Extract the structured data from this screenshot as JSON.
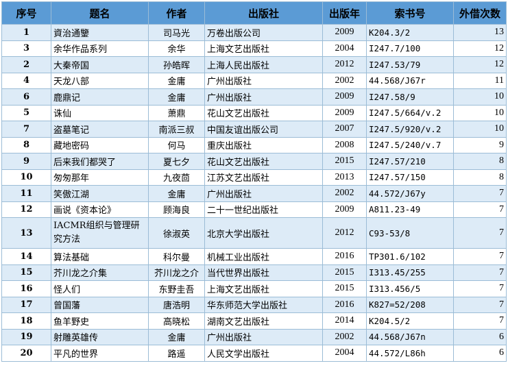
{
  "table": {
    "headers": [
      "序号",
      "题名",
      "作者",
      "出版社",
      "出版年",
      "索书号",
      "外借次数"
    ],
    "rows": [
      {
        "no": "1",
        "title": "資治通鑒",
        "author": "司马光",
        "publisher": "万卷出版公司",
        "year": "2009",
        "call": "K204.3/2",
        "loans": "13"
      },
      {
        "no": "3",
        "title": "余华作品系列",
        "author": "余华",
        "publisher": "上海文艺出版社",
        "year": "2004",
        "call": "I247.7/100",
        "loans": "12"
      },
      {
        "no": "2",
        "title": "大秦帝国",
        "author": "孙皓晖",
        "publisher": "上海人民出版社",
        "year": "2012",
        "call": "I247.53/79",
        "loans": "12"
      },
      {
        "no": "4",
        "title": "天龙八部",
        "author": "金庸",
        "publisher": "广州出版社",
        "year": "2002",
        "call": "44.568/J67r",
        "loans": "11"
      },
      {
        "no": "6",
        "title": "鹿鼎记",
        "author": "金庸",
        "publisher": "广州出版社",
        "year": "2009",
        "call": "I247.58/9",
        "loans": "10"
      },
      {
        "no": "5",
        "title": "诛仙",
        "author": "萧鼎",
        "publisher": "花山文艺出版社",
        "year": "2009",
        "call": "I247.5/664/v.2",
        "loans": "10"
      },
      {
        "no": "7",
        "title": "盗墓笔记",
        "author": "南派三叔",
        "publisher": "中国友谊出版公司",
        "year": "2007",
        "call": "I247.5/920/v.2",
        "loans": "10"
      },
      {
        "no": "8",
        "title": "藏地密码",
        "author": "何马",
        "publisher": "重庆出版社",
        "year": "2008",
        "call": "I247.5/240/v.7",
        "loans": "9"
      },
      {
        "no": "9",
        "title": "后来我们都哭了",
        "author": "夏七夕",
        "publisher": "花山文艺出版社",
        "year": "2015",
        "call": "I247.57/210",
        "loans": "8"
      },
      {
        "no": "10",
        "title": "匆匆那年",
        "author": "九夜茴",
        "publisher": "江苏文艺出版社",
        "year": "2013",
        "call": "I247.57/150",
        "loans": "8"
      },
      {
        "no": "11",
        "title": "笑傲江湖",
        "author": "金庸",
        "publisher": "广州出版社",
        "year": "2002",
        "call": "44.572/J67y",
        "loans": "7"
      },
      {
        "no": "12",
        "title": "画说《资本论》",
        "author": "顾海良",
        "publisher": "二十一世纪出版社",
        "year": "2009",
        "call": "A811.23-49",
        "loans": "7"
      },
      {
        "no": "13",
        "title": "IACMR组织与管理研究方法",
        "author": "徐淑英",
        "publisher": "北京大学出版社",
        "year": "2012",
        "call": "C93-53/8",
        "loans": "7"
      },
      {
        "no": "14",
        "title": "算法基础",
        "author": "科尔曼",
        "publisher": "机械工业出版社",
        "year": "2016",
        "call": "TP301.6/102",
        "loans": "7"
      },
      {
        "no": "15",
        "title": "芥川龙之介集",
        "author": "芥川龙之介",
        "publisher": "当代世界出版社",
        "year": "2015",
        "call": "I313.45/255",
        "loans": "7"
      },
      {
        "no": "16",
        "title": "怪人们",
        "author": "东野圭吾",
        "publisher": "上海文艺出版社",
        "year": "2015",
        "call": "I313.456/5",
        "loans": "7"
      },
      {
        "no": "17",
        "title": "曾国藩",
        "author": "唐浩明",
        "publisher": "华东师范大学出版社",
        "year": "2016",
        "call": "K827=52/208",
        "loans": "7"
      },
      {
        "no": "18",
        "title": "鱼羊野史",
        "author": "高晓松",
        "publisher": "湖南文艺出版社",
        "year": "2014",
        "call": "K204.5/2",
        "loans": "7"
      },
      {
        "no": "19",
        "title": "射雕英雄传",
        "author": "金庸",
        "publisher": "广州出版社",
        "year": "2002",
        "call": "44.568/J67n",
        "loans": "6"
      },
      {
        "no": "20",
        "title": "平凡的世界",
        "author": "路遥",
        "publisher": "人民文学出版社",
        "year": "2004",
        "call": "44.572/L86h",
        "loans": "6"
      }
    ]
  }
}
